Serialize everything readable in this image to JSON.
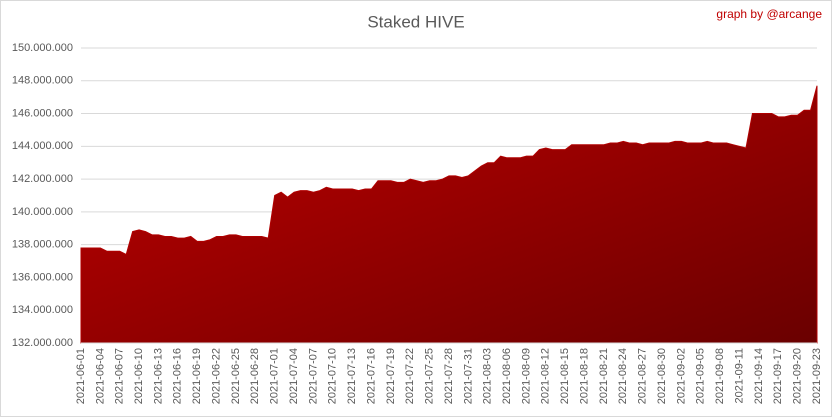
{
  "chart_data": {
    "type": "area",
    "title": "Staked HIVE",
    "annotation": "graph by @arcange",
    "categories": [
      "2021-06-01",
      null,
      null,
      "2021-06-04",
      null,
      null,
      "2021-06-07",
      null,
      null,
      "2021-06-10",
      null,
      null,
      "2021-06-13",
      null,
      null,
      "2021-06-16",
      null,
      null,
      "2021-06-19",
      null,
      null,
      "2021-06-22",
      null,
      null,
      "2021-06-25",
      null,
      null,
      "2021-06-28",
      null,
      null,
      "2021-07-01",
      null,
      null,
      "2021-07-04",
      null,
      null,
      "2021-07-07",
      null,
      null,
      "2021-07-10",
      null,
      null,
      "2021-07-13",
      null,
      null,
      "2021-07-16",
      null,
      null,
      "2021-07-19",
      null,
      null,
      "2021-07-22",
      null,
      null,
      "2021-07-25",
      null,
      null,
      "2021-07-28",
      null,
      null,
      "2021-07-31",
      null,
      null,
      "2021-08-03",
      null,
      null,
      "2021-08-06",
      null,
      null,
      "2021-08-09",
      null,
      null,
      "2021-08-12",
      null,
      null,
      "2021-08-15",
      null,
      null,
      "2021-08-18",
      null,
      null,
      "2021-08-21",
      null,
      null,
      "2021-08-24",
      null,
      null,
      "2021-08-27",
      null,
      null,
      "2021-08-30",
      null,
      null,
      "2021-09-02",
      null,
      null,
      "2021-09-05",
      null,
      null,
      "2021-09-08",
      null,
      null,
      "2021-09-11",
      null,
      null,
      "2021-09-14",
      null,
      null,
      "2021-09-17",
      null,
      null,
      "2021-09-20",
      null,
      null,
      "2021-09-23"
    ],
    "values": [
      137800000,
      137800000,
      137800000,
      137800000,
      137600000,
      137600000,
      137600000,
      137400000,
      138800000,
      138900000,
      138800000,
      138600000,
      138600000,
      138500000,
      138500000,
      138400000,
      138400000,
      138500000,
      138200000,
      138200000,
      138300000,
      138500000,
      138500000,
      138600000,
      138600000,
      138500000,
      138500000,
      138500000,
      138500000,
      138400000,
      141000000,
      141200000,
      140900000,
      141200000,
      141300000,
      141300000,
      141200000,
      141300000,
      141500000,
      141400000,
      141400000,
      141400000,
      141400000,
      141300000,
      141400000,
      141400000,
      141900000,
      141900000,
      141900000,
      141800000,
      141800000,
      142000000,
      141900000,
      141800000,
      141900000,
      141900000,
      142000000,
      142200000,
      142200000,
      142100000,
      142200000,
      142500000,
      142800000,
      143000000,
      143000000,
      143400000,
      143300000,
      143300000,
      143300000,
      143400000,
      143400000,
      143800000,
      143900000,
      143800000,
      143800000,
      143800000,
      144100000,
      144100000,
      144100000,
      144100000,
      144100000,
      144100000,
      144200000,
      144200000,
      144300000,
      144200000,
      144200000,
      144100000,
      144200000,
      144200000,
      144200000,
      144200000,
      144300000,
      144300000,
      144200000,
      144200000,
      144200000,
      144300000,
      144200000,
      144200000,
      144200000,
      144100000,
      144000000,
      143900000,
      146000000,
      146000000,
      146000000,
      146000000,
      145800000,
      145800000,
      145900000,
      145900000,
      146200000,
      146200000,
      147700000
    ],
    "color": "#b00000",
    "ylim": [
      132000000,
      150000000
    ],
    "yticks": [
      {
        "value": 132000000,
        "label": "132.000.000"
      },
      {
        "value": 134000000,
        "label": "134.000.000"
      },
      {
        "value": 136000000,
        "label": "136.000.000"
      },
      {
        "value": 138000000,
        "label": "138.000.000"
      },
      {
        "value": 140000000,
        "label": "140.000.000"
      },
      {
        "value": 142000000,
        "label": "142.000.000"
      },
      {
        "value": 144000000,
        "label": "144.000.000"
      },
      {
        "value": 146000000,
        "label": "146.000.000"
      },
      {
        "value": 148000000,
        "label": "148.000.000"
      },
      {
        "value": 150000000,
        "label": "150.000.000"
      }
    ],
    "grid": true
  }
}
